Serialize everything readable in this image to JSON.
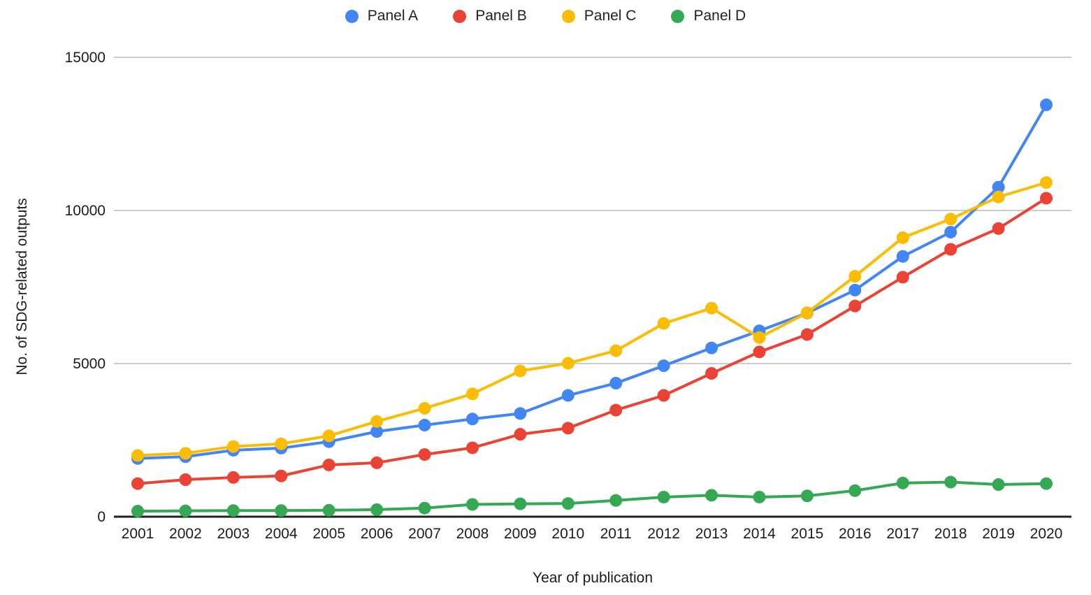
{
  "chart_data": {
    "type": "line",
    "title": "",
    "xlabel": "Year of publication",
    "ylabel": "No. of SDG-related outputs",
    "x": [
      2001,
      2002,
      2003,
      2004,
      2005,
      2006,
      2007,
      2008,
      2009,
      2010,
      2011,
      2012,
      2013,
      2014,
      2015,
      2016,
      2017,
      2018,
      2019,
      2020
    ],
    "ylim": [
      0,
      15000
    ],
    "yticks": [
      0,
      5000,
      10000,
      15000
    ],
    "grid": true,
    "legend_position": "top",
    "marker_radius": 9,
    "line_width": 4,
    "colors": {
      "grid": "#cccccc",
      "baseline": "#212121",
      "text": "#1c1c1c"
    },
    "series": [
      {
        "name": "Panel A",
        "color": "#4285F4",
        "values": [
          1900,
          1960,
          2170,
          2240,
          2450,
          2780,
          2990,
          3190,
          3370,
          3960,
          4360,
          4930,
          5510,
          6070,
          6650,
          7400,
          8500,
          9290,
          10760,
          13450
        ]
      },
      {
        "name": "Panel B",
        "color": "#EA4335",
        "values": [
          1080,
          1210,
          1280,
          1330,
          1690,
          1760,
          2030,
          2250,
          2690,
          2890,
          3480,
          3960,
          4680,
          5380,
          5950,
          6880,
          7820,
          8730,
          9410,
          10400
        ]
      },
      {
        "name": "Panel C",
        "color": "#FBBC04",
        "values": [
          2000,
          2070,
          2290,
          2380,
          2640,
          3110,
          3540,
          4010,
          4760,
          5010,
          5420,
          6310,
          6810,
          5850,
          6660,
          7850,
          9110,
          9720,
          10440,
          10910
        ]
      },
      {
        "name": "Panel D",
        "color": "#34A853",
        "values": [
          180,
          190,
          200,
          200,
          210,
          230,
          280,
          400,
          420,
          430,
          530,
          640,
          700,
          640,
          680,
          850,
          1100,
          1130,
          1050,
          1080
        ]
      }
    ]
  }
}
